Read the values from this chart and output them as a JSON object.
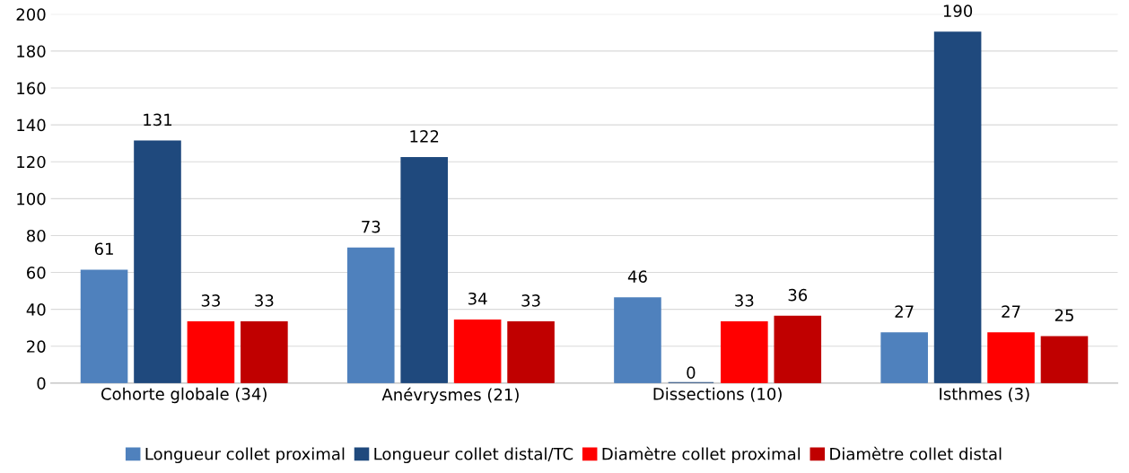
{
  "chart_data": {
    "type": "bar",
    "categories": [
      "Cohorte globale (34)",
      "Anévrysmes (21)",
      "Dissections (10)",
      "Isthmes (3)"
    ],
    "series": [
      {
        "name": "Longueur collet proximal",
        "color": "#4f81bd",
        "values": [
          61,
          73,
          46,
          27
        ]
      },
      {
        "name": "Longueur collet distal/TC",
        "color": "#1f497d",
        "values": [
          131,
          122,
          0,
          190
        ]
      },
      {
        "name": "Diamètre collet proximal",
        "color": "#ff0000",
        "values": [
          33,
          34,
          33,
          27
        ]
      },
      {
        "name": "Diamètre collet distal",
        "color": "#c00000",
        "values": [
          33,
          33,
          36,
          25
        ]
      }
    ],
    "ylim": [
      0,
      200
    ],
    "yticks": [
      0,
      20,
      40,
      60,
      80,
      100,
      120,
      140,
      160,
      180,
      200
    ],
    "grid": "y",
    "legend": "bottom",
    "data_labels": true
  }
}
